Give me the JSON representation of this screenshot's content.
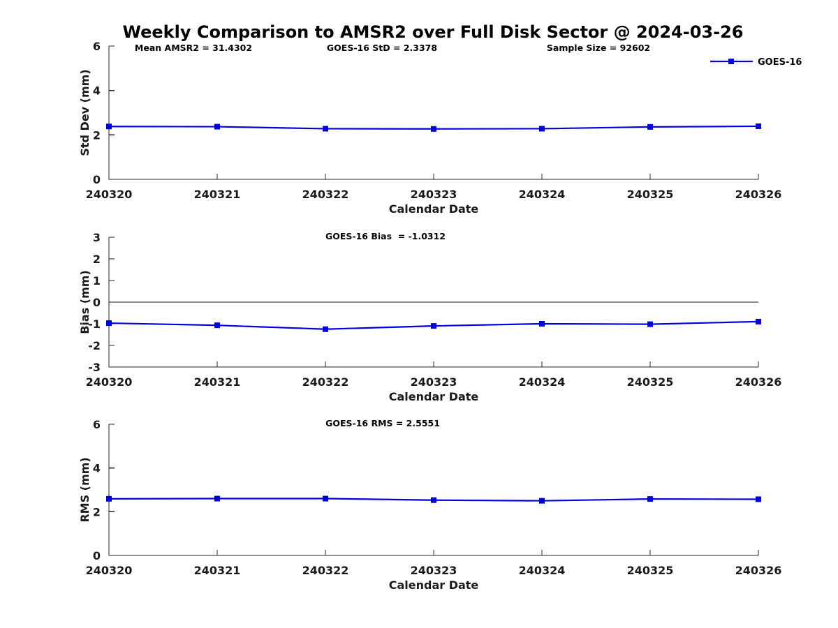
{
  "figure_title": "Weekly Comparison to AMSR2 over Full Disk Sector @ 2024-03-26",
  "x_label": "Calendar Date",
  "x_categories": [
    "240320",
    "240321",
    "240322",
    "240323",
    "240324",
    "240325",
    "240326"
  ],
  "legend": {
    "label": "GOES-16"
  },
  "colors": {
    "line": "#0000dd",
    "text": "#1a1a1a",
    "title": "#000000",
    "axis": "#262626"
  },
  "chart_data": [
    {
      "id": "stddev",
      "type": "line",
      "title": "",
      "annotations": [
        "Mean AMSR2 = 31.4302",
        "GOES-16 StD = 2.3378",
        "Sample Size = 92602"
      ],
      "xlabel": "Calendar Date",
      "ylabel": "Std Dev (mm)",
      "ylim": [
        0,
        6
      ],
      "ytick_labels": [
        "0",
        "2",
        "4",
        "6"
      ],
      "grid": "off",
      "legend_position": "upper-right-outside",
      "categories": [
        "240320",
        "240321",
        "240322",
        "240323",
        "240324",
        "240325",
        "240326"
      ],
      "series": [
        {
          "name": "GOES-16",
          "marker": "square",
          "values": [
            2.38,
            2.37,
            2.28,
            2.27,
            2.28,
            2.36,
            2.39
          ]
        }
      ]
    },
    {
      "id": "bias",
      "type": "line",
      "title": "",
      "annotations": [
        "GOES-16 Bias  = -1.0312"
      ],
      "xlabel": "Calendar Date",
      "ylabel": "Bias (mm)",
      "ylim": [
        -3,
        3
      ],
      "ytick_labels": [
        "-3",
        "-2",
        "-1",
        "0",
        "1",
        "2",
        "3"
      ],
      "zero_line": true,
      "grid": "off",
      "categories": [
        "240320",
        "240321",
        "240322",
        "240323",
        "240324",
        "240325",
        "240326"
      ],
      "series": [
        {
          "name": "GOES-16",
          "marker": "square",
          "values": [
            -0.97,
            -1.07,
            -1.25,
            -1.1,
            -1.0,
            -1.02,
            -0.9
          ]
        }
      ]
    },
    {
      "id": "rms",
      "type": "line",
      "title": "",
      "annotations": [
        "GOES-16 RMS = 2.5551"
      ],
      "xlabel": "Calendar Date",
      "ylabel": "RMS (mm)",
      "ylim": [
        0,
        6
      ],
      "ytick_labels": [
        "0",
        "2",
        "4",
        "6"
      ],
      "grid": "off",
      "categories": [
        "240320",
        "240321",
        "240322",
        "240323",
        "240324",
        "240325",
        "240326"
      ],
      "series": [
        {
          "name": "GOES-16",
          "marker": "square",
          "values": [
            2.59,
            2.6,
            2.6,
            2.53,
            2.5,
            2.58,
            2.57
          ]
        }
      ]
    }
  ]
}
